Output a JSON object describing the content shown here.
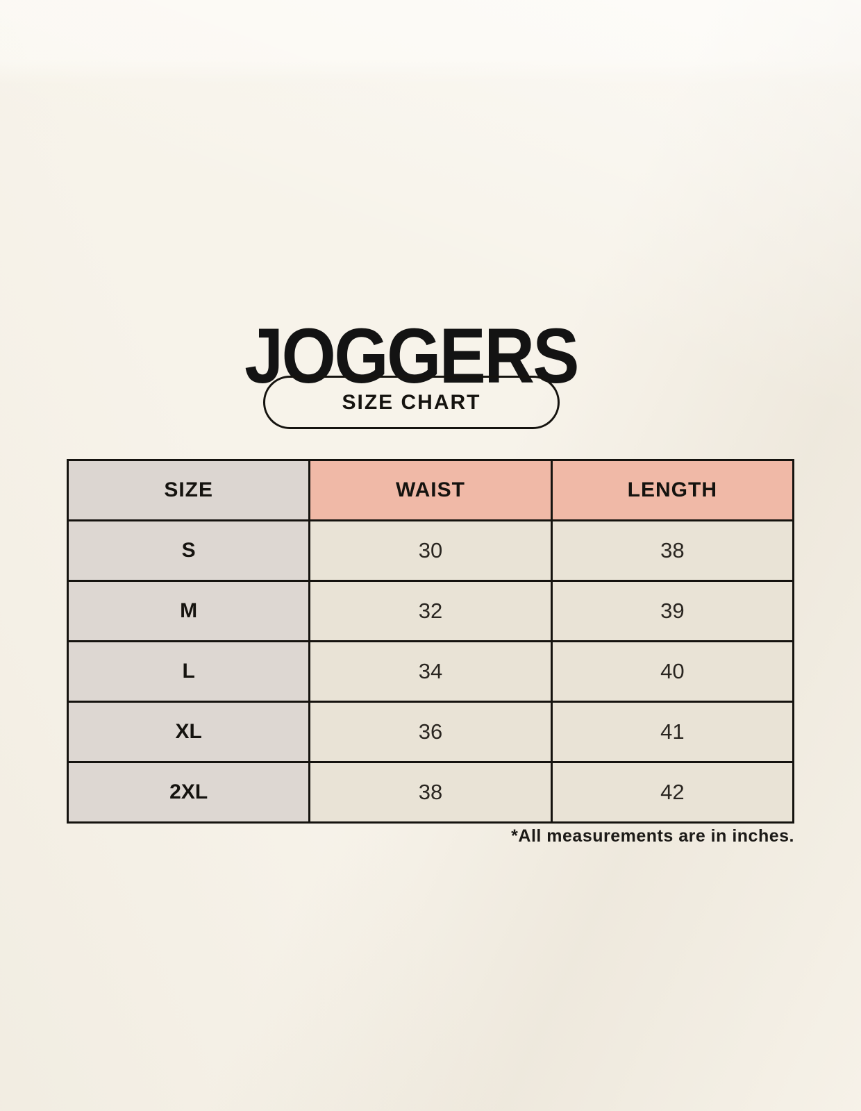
{
  "page": {
    "title": "JOGGERS",
    "badge_label": "SIZE CHART",
    "footnote": "*All measurements are in inches."
  },
  "chart_data": {
    "type": "table",
    "title": "JOGGERS",
    "subtitle": "SIZE CHART",
    "unit": "inches",
    "columns": [
      "SIZE",
      "WAIST",
      "LENGTH"
    ],
    "rows": [
      {
        "size": "S",
        "waist": "30",
        "length": "38"
      },
      {
        "size": "M",
        "waist": "32",
        "length": "39"
      },
      {
        "size": "L",
        "waist": "34",
        "length": "40"
      },
      {
        "size": "XL",
        "waist": "36",
        "length": "41"
      },
      {
        "size": "2XL",
        "waist": "38",
        "length": "42"
      }
    ],
    "units_note": "*All measurements are in inches."
  },
  "colors": {
    "background": "#F7F3EA",
    "header_pink": "#F0B9A7",
    "size_column_gray": "#DCD6D1",
    "value_cell_cream": "#E9E3D6",
    "border_black": "#15130F",
    "text": "#191714"
  }
}
